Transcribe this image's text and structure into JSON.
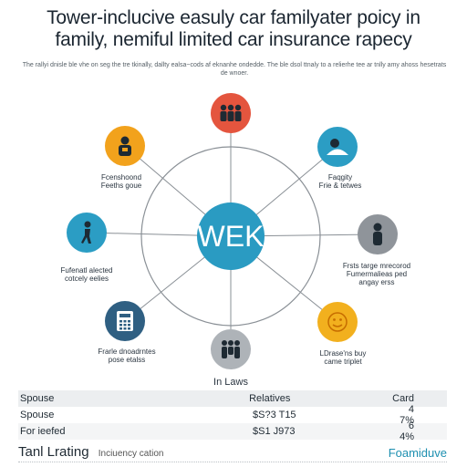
{
  "title": {
    "line1": "Tower-inclucive easuly car familyater poicy in",
    "line2": "family, nemiful limited car insurance rapecy"
  },
  "subtitle": "The rallyi dnisle ble vhe on seg the tre tkinally, dallty ealsa~cods af eknanhe ondedde. The ble dsol ttnaly to a relierhe tee ar tnlly amy ahoss hesetrats de wnoer.",
  "hub": {
    "label": "WEK",
    "color": "#2a9bc2"
  },
  "nodes": [
    {
      "id": "top",
      "icon": "people-group-icon",
      "color": "#e4553e",
      "label": ""
    },
    {
      "id": "upper-right",
      "icon": "person-care-icon",
      "color": "#2b9dc4",
      "label": "Faqgity\nFrie & tetwes"
    },
    {
      "id": "right",
      "icon": "person-icon",
      "color": "#8f949a",
      "label": "Frsts targe mrecorod\nFumermalieas ped\nangay erss"
    },
    {
      "id": "lower-right",
      "icon": "smiley-icon",
      "color": "#f2b01e",
      "label": "LDrase'ns buy\ncame triplet"
    },
    {
      "id": "bottom",
      "icon": "family-icon",
      "color": "#aeb3b8",
      "label": "In Laws"
    },
    {
      "id": "lower-left",
      "icon": "calculator-icon",
      "color": "#2f5f82",
      "label": "Frarle dnoadrntes\npose etalss"
    },
    {
      "id": "left",
      "icon": "person-walking-icon",
      "color": "#2b9dc4",
      "label": "Fufenatl alected\ncotcely eelies"
    },
    {
      "id": "upper-left",
      "icon": "person-badge-icon",
      "color": "#f2a21c",
      "label": "Fcenshoond\nFeeths goue"
    }
  ],
  "table": {
    "headers": [
      "Spouse",
      "Relatives",
      "Card"
    ],
    "rows": [
      [
        "Spouse",
        "$S?3 T15",
        "4 7%"
      ],
      [
        "For ieefed",
        "$S1 J973",
        "6 4%"
      ]
    ]
  },
  "footer": {
    "left_big": "Tanl Lrating",
    "left_small": "Inciuency cation",
    "right": "Foamiduve"
  }
}
